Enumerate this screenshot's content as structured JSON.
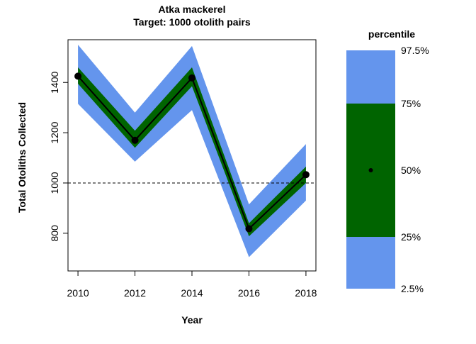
{
  "chart_data": {
    "type": "line",
    "title": "Atka mackerel",
    "subtitle": "Target: 1000 otolith pairs",
    "xlabel": "Year",
    "ylabel": "Total Otoliths Collected",
    "x": [
      2010,
      2012,
      2014,
      2016,
      2018
    ],
    "series": [
      {
        "name": "median",
        "values": [
          1425,
          1170,
          1418,
          818,
          1033
        ]
      }
    ],
    "band_75_lower": [
      1395,
      1140,
      1385,
      788,
      1000
    ],
    "band_75_upper": [
      1460,
      1208,
      1460,
      840,
      1065
    ],
    "band_97_5_lower": [
      1315,
      1085,
      1290,
      705,
      930
    ],
    "band_97_5_upper": [
      1550,
      1280,
      1545,
      915,
      1155
    ],
    "reference_line": 1000,
    "xlim": [
      2009.65,
      2018.35
    ],
    "ylim": [
      650,
      1570
    ],
    "xticks": [
      2010,
      2012,
      2014,
      2016,
      2018
    ],
    "yticks": [
      800,
      1000,
      1200,
      1400
    ],
    "grid": false,
    "legend_placement": "right",
    "legend": {
      "title": "percentile",
      "labels": [
        "97.5%",
        "75%",
        "50%",
        "25%",
        "2.5%"
      ]
    },
    "colors": {
      "outer_band": "#6495ED",
      "inner_band": "#006400",
      "median_line": "#000000",
      "reference_line": "#000000"
    }
  }
}
